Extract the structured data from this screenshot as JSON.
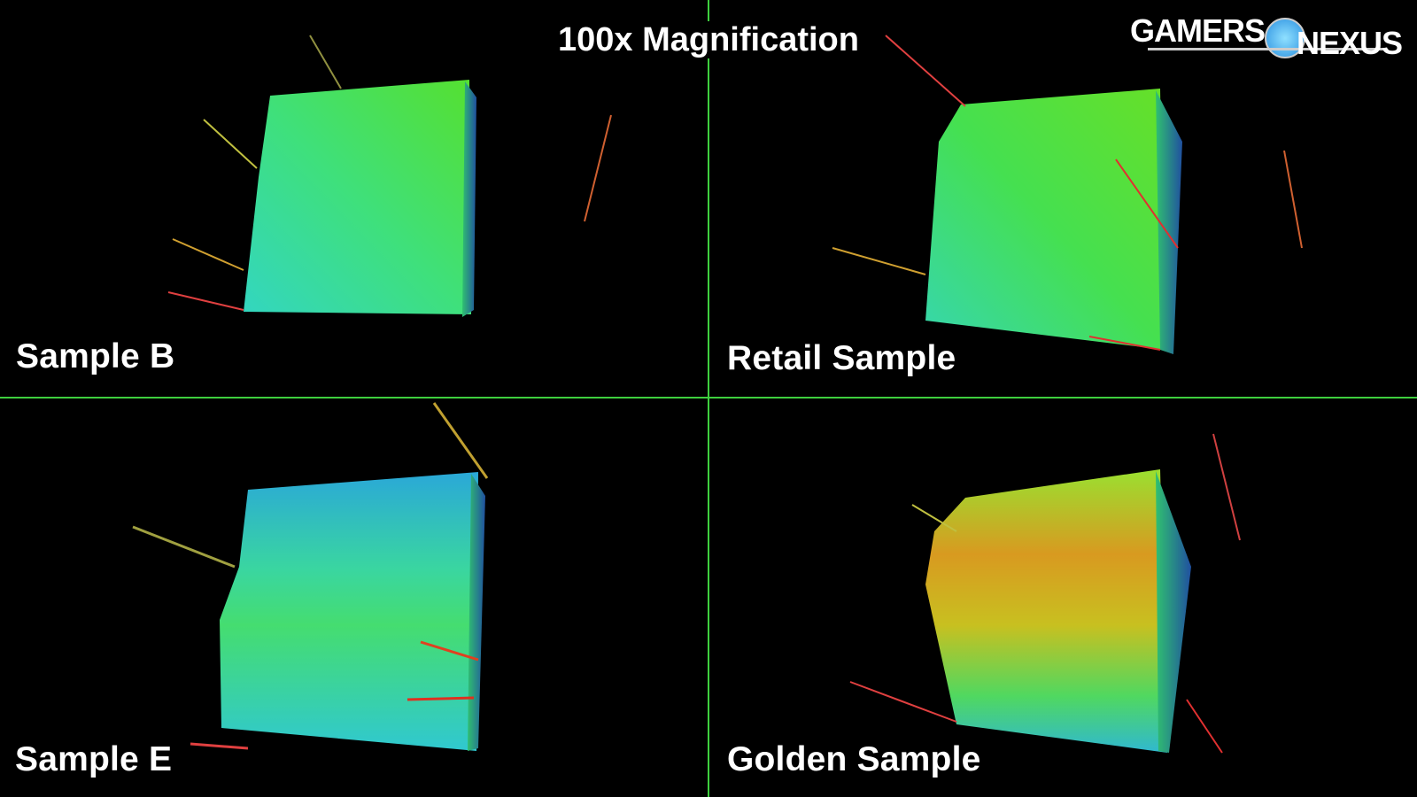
{
  "title": "100x Magnification",
  "logo": {
    "text_left": "GAMERS",
    "text_right": "NEXUS"
  },
  "panels": [
    {
      "label": "Sample B"
    },
    {
      "label": "Retail Sample"
    },
    {
      "label": "Sample E"
    },
    {
      "label": "Golden Sample"
    }
  ],
  "colors": {
    "divider": "#3ecf3e",
    "background": "#000000"
  }
}
